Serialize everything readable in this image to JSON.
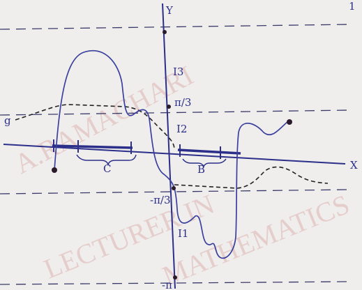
{
  "axes": {
    "x_label": "X",
    "y_label": "Y"
  },
  "y_marks": [
    "π/3",
    "-π/3",
    "-π"
  ],
  "intervals": [
    "I3",
    "I2",
    "I1"
  ],
  "braces": [
    "C",
    "B"
  ],
  "curve_label": "g",
  "page_number": "1",
  "watermark": [
    "A.RAMACHARI",
    "LECTURER IN",
    "MATHEMATICS"
  ]
}
